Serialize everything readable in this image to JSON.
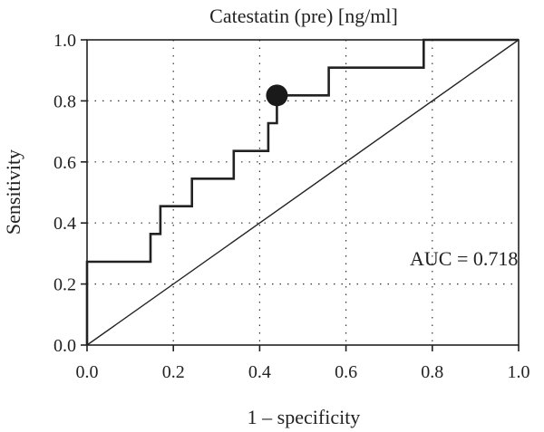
{
  "chart_data": {
    "type": "line",
    "title": "Catestatin (pre) [ng/ml]",
    "xlabel": "1 – specificity",
    "ylabel": "Sensitivity",
    "xlim": [
      0,
      1
    ],
    "ylim": [
      0,
      1
    ],
    "x_ticks": [
      "0.0",
      "0.2",
      "0.4",
      "0.6",
      "0.8",
      "1.0"
    ],
    "y_ticks": [
      "0.0",
      "0.2",
      "0.4",
      "0.6",
      "0.8",
      "1.0"
    ],
    "x_tick_values": [
      0,
      0.2,
      0.4,
      0.6,
      0.8,
      1.0
    ],
    "y_tick_values": [
      0,
      0.2,
      0.4,
      0.6,
      0.8,
      1.0
    ],
    "grid": true,
    "roc_curve": {
      "x": [
        0,
        0,
        0.147,
        0.147,
        0.17,
        0.17,
        0.243,
        0.243,
        0.34,
        0.34,
        0.42,
        0.42,
        0.44,
        0.44,
        0.56,
        0.56,
        0.78,
        0.78,
        1.0
      ],
      "y": [
        0,
        0.273,
        0.273,
        0.364,
        0.364,
        0.455,
        0.455,
        0.545,
        0.545,
        0.636,
        0.636,
        0.727,
        0.727,
        0.818,
        0.818,
        0.909,
        0.909,
        1.0,
        1.0
      ]
    },
    "reference_line": {
      "x": [
        0,
        1
      ],
      "y": [
        0,
        1
      ]
    },
    "optimal_cutoff": {
      "x": 0.44,
      "y": 0.818
    },
    "annotation": "AUC = 0.718"
  }
}
